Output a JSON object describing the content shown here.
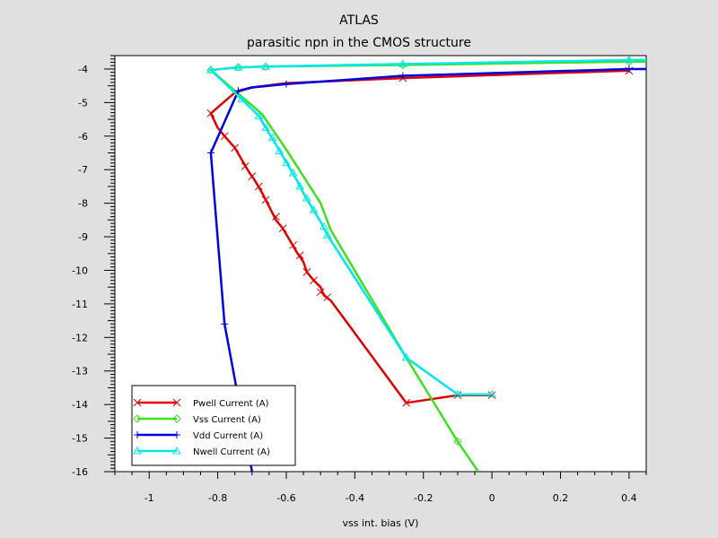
{
  "chart_data": {
    "type": "line",
    "title": "ATLAS",
    "subtitle": "parasitic npn in the CMOS structure",
    "xlabel": "vss int. bias (V)",
    "ylabel": "",
    "xlim": [
      -1.1,
      0.45
    ],
    "ylim": [
      -16,
      -3.6
    ],
    "x_ticks": [
      -1,
      -0.8,
      -0.6,
      -0.4,
      -0.2,
      0,
      0.2,
      0.4
    ],
    "x_tick_labels": [
      "-1",
      "-0.8",
      "-0.6",
      "-0.4",
      "-0.2",
      "0",
      "0.2",
      "0.4"
    ],
    "y_ticks": [
      -4,
      -5,
      -6,
      -7,
      -8,
      -9,
      -10,
      -11,
      -12,
      -13,
      -14,
      -15,
      -16
    ],
    "y_tick_labels": [
      "-4",
      "-5",
      "-6",
      "-7",
      "-8",
      "-9",
      "-10",
      "-11",
      "-12",
      "-13",
      "-14",
      "-15",
      "-16"
    ],
    "grid": false,
    "legend_position": "bottom-left",
    "series": [
      {
        "name": "Pwell Current (A)",
        "color": "#e00000",
        "marker": "x",
        "points": [
          [
            0.4,
            -4.05
          ],
          [
            -0.26,
            -4.27
          ],
          [
            -0.6,
            -4.42
          ],
          [
            -0.7,
            -4.55
          ],
          [
            -0.75,
            -4.7
          ],
          [
            -0.82,
            -5.32
          ],
          [
            -0.8,
            -5.75
          ],
          [
            -0.78,
            -6.0
          ],
          [
            -0.75,
            -6.35
          ],
          [
            -0.73,
            -6.7
          ],
          [
            -0.71,
            -7.05
          ],
          [
            -0.69,
            -7.35
          ],
          [
            -0.67,
            -7.7
          ],
          [
            -0.65,
            -8.1
          ],
          [
            -0.63,
            -8.5
          ],
          [
            -0.61,
            -8.75
          ],
          [
            -0.59,
            -9.1
          ],
          [
            -0.57,
            -9.45
          ],
          [
            -0.55,
            -9.75
          ],
          [
            -0.54,
            -10.05
          ],
          [
            -0.52,
            -10.3
          ],
          [
            -0.5,
            -10.5
          ],
          [
            -0.49,
            -10.75
          ],
          [
            -0.47,
            -10.9
          ],
          [
            -0.25,
            -13.95
          ],
          [
            -0.1,
            -13.72
          ],
          [
            0,
            -13.72
          ]
        ],
        "markers": [
          [
            0.4,
            -4.05
          ],
          [
            -0.26,
            -4.27
          ],
          [
            -0.82,
            -5.32
          ],
          [
            -0.78,
            -6.0
          ],
          [
            -0.75,
            -6.35
          ],
          [
            -0.72,
            -6.9
          ],
          [
            -0.7,
            -7.2
          ],
          [
            -0.68,
            -7.5
          ],
          [
            -0.66,
            -7.9
          ],
          [
            -0.63,
            -8.4
          ],
          [
            -0.61,
            -8.75
          ],
          [
            -0.58,
            -9.25
          ],
          [
            -0.56,
            -9.55
          ],
          [
            -0.54,
            -10.05
          ],
          [
            -0.52,
            -10.3
          ],
          [
            -0.5,
            -10.65
          ],
          [
            -0.48,
            -10.8
          ],
          [
            -0.25,
            -13.95
          ],
          [
            -0.1,
            -13.72
          ],
          [
            0,
            -13.72
          ]
        ]
      },
      {
        "name": "Vss Current (A)",
        "color": "#40e020",
        "marker": "diamond",
        "points": [
          [
            0.45,
            -3.78
          ],
          [
            0.4,
            -3.78
          ],
          [
            -0.26,
            -3.88
          ],
          [
            -0.66,
            -3.93
          ],
          [
            -0.74,
            -3.95
          ],
          [
            -0.82,
            -4.03
          ],
          [
            -0.67,
            -5.35
          ],
          [
            -0.6,
            -6.4
          ],
          [
            -0.5,
            -8.0
          ],
          [
            -0.47,
            -8.8
          ],
          [
            -0.25,
            -12.6
          ],
          [
            -0.1,
            -15.1
          ],
          [
            -0.04,
            -16.0
          ]
        ],
        "markers": [
          [
            0.4,
            -3.78
          ],
          [
            -0.26,
            -3.88
          ],
          [
            -0.66,
            -3.93
          ],
          [
            -0.74,
            -3.95
          ],
          [
            -0.82,
            -4.03
          ],
          [
            -0.1,
            -15.1
          ]
        ]
      },
      {
        "name": "Vdd Current (A)",
        "color": "#0000e0",
        "marker": "+",
        "points": [
          [
            0.45,
            -4.0
          ],
          [
            0.4,
            -4.0
          ],
          [
            -0.26,
            -4.2
          ],
          [
            -0.6,
            -4.45
          ],
          [
            -0.7,
            -4.55
          ],
          [
            -0.74,
            -4.65
          ],
          [
            -0.82,
            -6.5
          ],
          [
            -0.78,
            -11.6
          ],
          [
            -0.7,
            -16.0
          ]
        ],
        "markers": [
          [
            0.4,
            -4.0
          ],
          [
            -0.26,
            -4.2
          ],
          [
            -0.6,
            -4.45
          ],
          [
            -0.74,
            -4.65
          ],
          [
            -0.82,
            -6.5
          ],
          [
            -0.78,
            -11.6
          ]
        ]
      },
      {
        "name": "Nwell Current (A)",
        "color": "#00e8e8",
        "marker": "triangle",
        "points": [
          [
            0.45,
            -3.73
          ],
          [
            0.4,
            -3.73
          ],
          [
            -0.26,
            -3.85
          ],
          [
            -0.66,
            -3.93
          ],
          [
            -0.74,
            -3.95
          ],
          [
            -0.82,
            -4.03
          ],
          [
            -0.73,
            -4.9
          ],
          [
            -0.68,
            -5.4
          ],
          [
            -0.66,
            -5.75
          ],
          [
            -0.63,
            -6.25
          ],
          [
            -0.61,
            -6.6
          ],
          [
            -0.59,
            -6.95
          ],
          [
            -0.57,
            -7.3
          ],
          [
            -0.55,
            -7.7
          ],
          [
            -0.53,
            -8.05
          ],
          [
            -0.5,
            -8.55
          ],
          [
            -0.48,
            -8.95
          ],
          [
            -0.25,
            -12.6
          ],
          [
            -0.1,
            -13.7
          ],
          [
            0,
            -13.7
          ]
        ],
        "markers": [
          [
            0.4,
            -3.73
          ],
          [
            -0.26,
            -3.85
          ],
          [
            -0.66,
            -3.93
          ],
          [
            -0.74,
            -3.95
          ],
          [
            -0.82,
            -4.03
          ],
          [
            -0.73,
            -4.9
          ],
          [
            -0.68,
            -5.4
          ],
          [
            -0.66,
            -5.75
          ],
          [
            -0.64,
            -6.05
          ],
          [
            -0.62,
            -6.45
          ],
          [
            -0.6,
            -6.8
          ],
          [
            -0.58,
            -7.1
          ],
          [
            -0.56,
            -7.5
          ],
          [
            -0.54,
            -7.85
          ],
          [
            -0.52,
            -8.2
          ],
          [
            -0.49,
            -8.7
          ],
          [
            -0.48,
            -8.95
          ],
          [
            -0.25,
            -12.6
          ],
          [
            -0.1,
            -13.7
          ],
          [
            0,
            -13.7
          ]
        ]
      }
    ]
  }
}
